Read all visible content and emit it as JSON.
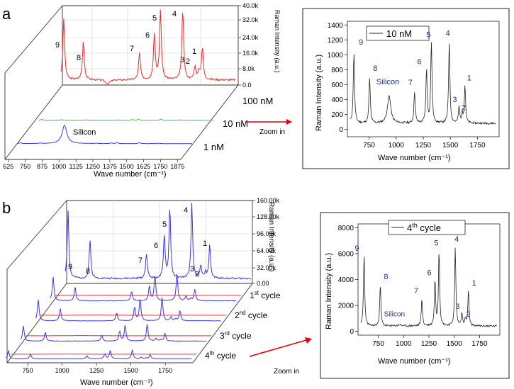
{
  "panels": {
    "a": {
      "letter": "a",
      "zoom_label": "Zoom in",
      "waterfall": {
        "xlabel": "Wave number (cm⁻¹)",
        "xticks": [
          "625",
          "750",
          "875",
          "1000",
          "1125",
          "1250",
          "1375",
          "1500",
          "1625",
          "1750",
          "1875"
        ],
        "zlabel": "Raman Intensity (a.u.)",
        "zticks": [
          "0.0",
          "8.0k",
          "16.0k",
          "24.0k",
          "32.0k",
          "40.0k"
        ],
        "traces": [
          {
            "name": "100 nM",
            "color": "#e8302f"
          },
          {
            "name": "10 nM",
            "color": "#39c43b"
          },
          {
            "name": "1 nM",
            "color": "#3a3ae0"
          }
        ],
        "peak_labels": [
          "9",
          "8",
          "7",
          "6",
          "5",
          "4",
          "3",
          "2",
          "1"
        ],
        "silicon_label": "Silicon"
      },
      "zoom_chart": {
        "legend": "10 nM",
        "xlabel": "Wave number (cm⁻¹)",
        "ylabel": "Raman Intensity (a.u.)",
        "xticks": [
          "750",
          "1000",
          "1250",
          "1500",
          "1750"
        ],
        "yticks": [
          "0",
          "200",
          "400",
          "600",
          "800",
          "1000",
          "1200",
          "1400"
        ],
        "peak_labels": [
          "9",
          "8",
          "7",
          "6",
          "5",
          "4",
          "3",
          "2",
          "1"
        ],
        "silicon_label": "Silicon"
      }
    },
    "b": {
      "letter": "b",
      "zoom_label": "Zoom in",
      "waterfall": {
        "xlabel": "Wave number (cm⁻¹)",
        "xticks": [
          "750",
          "1000",
          "1250",
          "1500",
          "1750"
        ],
        "zlabel": "Raman Intensity (a.u.)",
        "zticks": [
          "0.00",
          "32.00k",
          "64.00k",
          "96.00k",
          "128.00k",
          "160.00k"
        ],
        "cycles": [
          {
            "num": "1",
            "sup": "st",
            "rest": " cycle"
          },
          {
            "num": "2",
            "sup": "nd",
            "rest": " cycle"
          },
          {
            "num": "3",
            "sup": "rd",
            "rest": " cycle"
          },
          {
            "num": "4",
            "sup": "th",
            "rest": " cycle"
          }
        ],
        "peak_labels": [
          "9",
          "8",
          "7",
          "6",
          "5",
          "4",
          "3",
          "2",
          "1"
        ]
      },
      "zoom_chart": {
        "legend_num": "4",
        "legend_sup": "th",
        "legend_rest": " cycle",
        "xlabel": "Wave number (cm⁻¹)",
        "ylabel": "Raman Intensity (a.u.)",
        "xticks": [
          "750",
          "1000",
          "1250",
          "1500",
          "1750"
        ],
        "yticks": [
          "0",
          "2000",
          "4000",
          "6000",
          "8000"
        ],
        "peak_labels": [
          "9",
          "8",
          "7",
          "6",
          "5",
          "4",
          "3",
          "2",
          "1"
        ],
        "silicon_label": "Silicon"
      }
    }
  },
  "chart_data": [
    {
      "type": "line",
      "title": "10 nM (zoom in)",
      "xlabel": "Wave number (cm-1)",
      "ylabel": "Raman Intensity (a.u.)",
      "xlim": [
        550,
        1950
      ],
      "ylim": [
        -100,
        1450
      ],
      "peaks": [
        {
          "label": "9",
          "x": 610,
          "y": 1040
        },
        {
          "label": "8",
          "x": 755,
          "y": 690
        },
        {
          "label": "Silicon",
          "x": 935,
          "y": 450
        },
        {
          "label": "7",
          "x": 1170,
          "y": 500
        },
        {
          "label": "6",
          "x": 1280,
          "y": 800
        },
        {
          "label": "5",
          "x": 1325,
          "y": 1160
        },
        {
          "label": "4",
          "x": 1490,
          "y": 1180
        },
        {
          "label": "3",
          "x": 1580,
          "y": 290
        },
        {
          "label": "2",
          "x": 1610,
          "y": 200
        },
        {
          "label": "1",
          "x": 1635,
          "y": 580
        }
      ],
      "baseline": 80
    },
    {
      "type": "line",
      "title": "4th cycle (zoom in)",
      "xlabel": "Wave number (cm-1)",
      "ylabel": "Raman Intensity (a.u.)",
      "xlim": [
        550,
        1950
      ],
      "ylim": [
        -300,
        8300
      ],
      "peaks": [
        {
          "label": "9",
          "x": 610,
          "y": 5900
        },
        {
          "label": "8",
          "x": 770,
          "y": 3600
        },
        {
          "label": "Silicon",
          "x": 960,
          "y": 500
        },
        {
          "label": "7",
          "x": 1180,
          "y": 2500
        },
        {
          "label": "6",
          "x": 1310,
          "y": 3900
        },
        {
          "label": "5",
          "x": 1350,
          "y": 6200
        },
        {
          "label": "4",
          "x": 1510,
          "y": 6500
        },
        {
          "label": "3",
          "x": 1575,
          "y": 1400
        },
        {
          "label": "2",
          "x": 1610,
          "y": 900
        },
        {
          "label": "1",
          "x": 1640,
          "y": 3100
        }
      ],
      "baseline": 400
    }
  ]
}
